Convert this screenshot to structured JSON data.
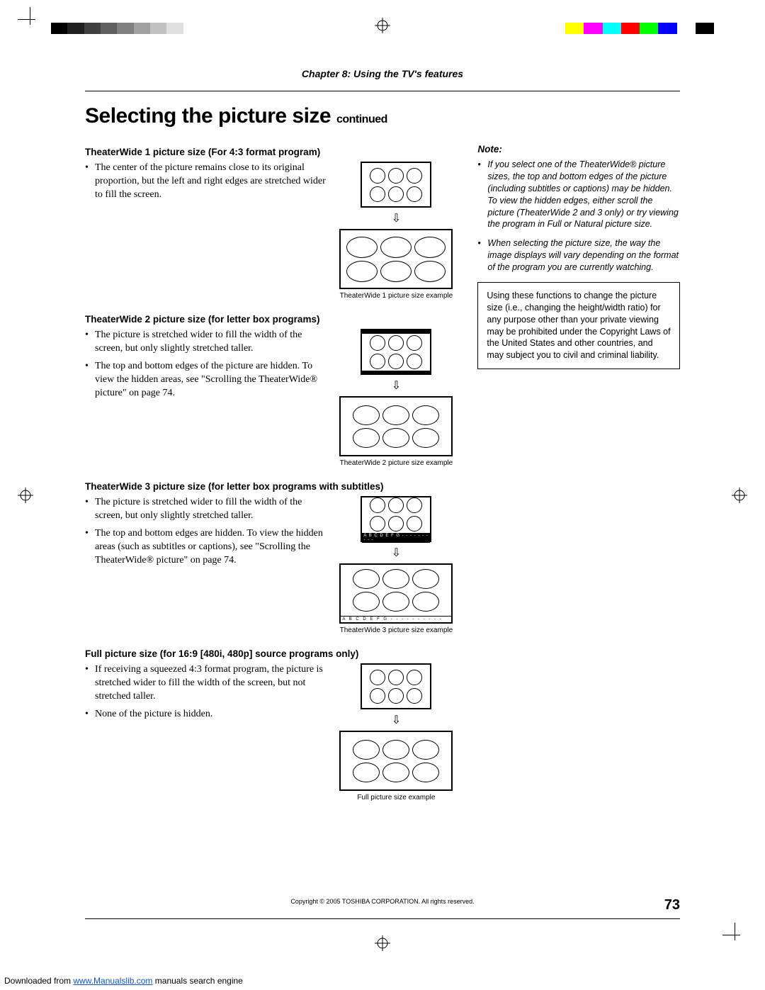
{
  "chapter": "Chapter 8: Using the TV's features",
  "title_main": "Selecting the picture size",
  "title_sub": "continued",
  "page_number": "73",
  "copyright": "Copyright © 2005 TOSHIBA CORPORATION. All rights reserved.",
  "download_line_pre": "Downloaded from ",
  "download_link": "www.Manualslib.com",
  "download_line_post": " manuals search engine",
  "sections": {
    "tw1": {
      "heading": "TheaterWide 1 picture size (For 4:3 format program)",
      "bullet1": "The center of the picture remains close to its original proportion, but the left and right edges are stretched wider to fill the screen.",
      "caption": "TheaterWide 1 picture size example"
    },
    "tw2": {
      "heading": "TheaterWide 2 picture size (for letter box programs)",
      "bullet1": "The picture is stretched wider to fill the width of the screen, but only slightly stretched taller.",
      "bullet2": "The top and bottom edges of the picture are hidden. To view the hidden areas, see \"Scrolling the TheaterWide® picture\" on page 74.",
      "caption": "TheaterWide 2 picture size example"
    },
    "tw3": {
      "heading": "TheaterWide 3 picture size (for letter box programs with subtitles)",
      "bullet1": "The picture is stretched wider to fill the width of the screen, but only slightly stretched taller.",
      "bullet2": "The top and bottom edges are hidden. To view the hidden areas (such as subtitles or captions), see \"Scrolling the TheaterWide® picture\" on page 74.",
      "caption": "TheaterWide 3 picture size example",
      "subtitle_sample": "A B C D E F G - - - - - - - - - -"
    },
    "full": {
      "heading": "Full picture size (for 16:9 [480i, 480p] source programs only)",
      "bullet1": "If receiving a squeezed 4:3 format program, the picture is stretched wider to fill the width of the screen, but not stretched taller.",
      "bullet2": "None of the picture is hidden.",
      "caption": "Full picture size example"
    }
  },
  "side": {
    "heading": "Note:",
    "note1": "If you select one of the TheaterWide® picture sizes, the top and bottom edges of the picture (including subtitles or captions) may be hidden. To view the hidden edges, either scroll the picture (TheaterWide 2 and 3 only) or try viewing the program in Full or Natural picture size.",
    "note2": "When selecting the picture size, the way the image displays will vary depending on the format of the program you are currently watching.",
    "warning": "Using these functions to change the picture size (i.e., changing the height/width ratio) for any purpose other than your private viewing may be prohibited under the Copyright Laws of the United States and other countries, and may subject you to civil and criminal liability."
  },
  "colorbar": {
    "grays": [
      "#000000",
      "#202020",
      "#404040",
      "#606060",
      "#808080",
      "#a0a0a0",
      "#c0c0c0",
      "#e0e0e0",
      "#ffffff"
    ],
    "colors": [
      "#ffff00",
      "#ff00ff",
      "#00ffff",
      "#ff0000",
      "#00ff00",
      "#0000ff",
      "#ffffff",
      "#000000"
    ]
  },
  "arrow_glyph": "⇩"
}
